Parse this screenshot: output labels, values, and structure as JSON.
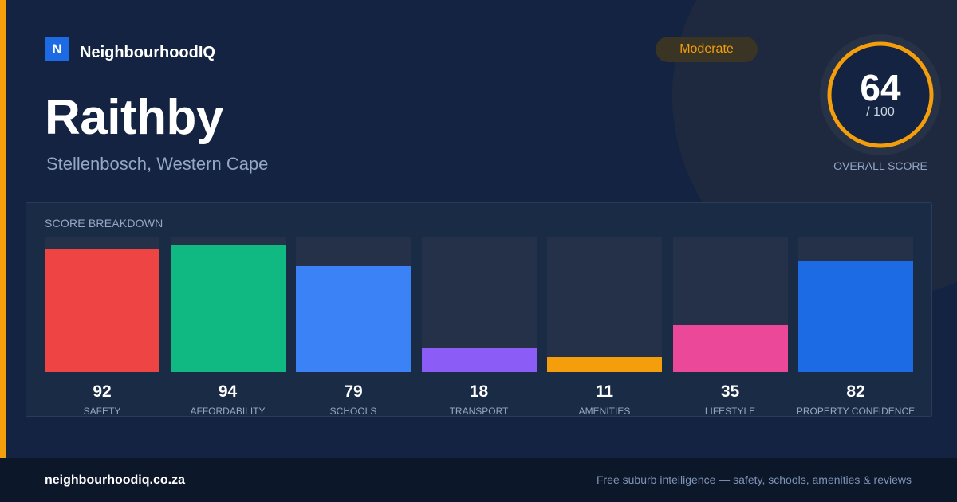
{
  "brand": {
    "logo_letter": "N",
    "name": "NeighbourhoodIQ"
  },
  "suburb": {
    "name": "Raithby",
    "location": "Stellenbosch, Western Cape"
  },
  "badge": {
    "label": "Moderate"
  },
  "overall": {
    "score": "64",
    "max": "/ 100",
    "label": "OVERALL SCORE",
    "value": 64
  },
  "breakdown": {
    "title": "SCORE BREAKDOWN",
    "items": [
      {
        "label": "SAFETY",
        "value": 92,
        "display": "92",
        "color": "#ef4444"
      },
      {
        "label": "AFFORDABILITY",
        "value": 94,
        "display": "94",
        "color": "#10b981"
      },
      {
        "label": "SCHOOLS",
        "value": 79,
        "display": "79",
        "color": "#3b82f6"
      },
      {
        "label": "TRANSPORT",
        "value": 18,
        "display": "18",
        "color": "#8b5cf6"
      },
      {
        "label": "AMENITIES",
        "value": 11,
        "display": "11",
        "color": "#f59e0b"
      },
      {
        "label": "LIFESTYLE",
        "value": 35,
        "display": "35",
        "color": "#ec4899"
      },
      {
        "label": "PROPERTY CONFIDENCE",
        "value": 82,
        "display": "82",
        "color": "#1d6ae5"
      }
    ]
  },
  "footer": {
    "url": "neighbourhoodiq.co.za",
    "tagline": "Free suburb intelligence — safety, schools, amenities & reviews"
  },
  "colors": {
    "accent": "#f59e0b",
    "background": "#132341",
    "brand": "#1d6ae5"
  }
}
